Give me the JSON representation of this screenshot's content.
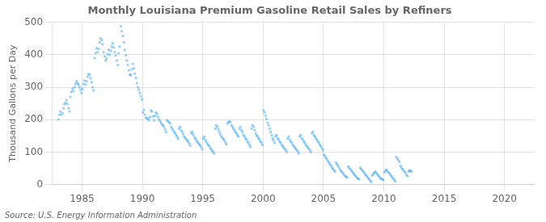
{
  "chart_data": {
    "type": "scatter",
    "title": "Monthly Louisiana Premium Gasoline Retail Sales by Refiners",
    "ylabel": "Thousand Gallons per Day",
    "annotations": [
      "Source: U.S. Energy Information Administration"
    ],
    "marker": "square",
    "grid": true,
    "xlim": [
      1982.5,
      2022.5
    ],
    "xticks": [
      1985,
      1990,
      1995,
      2000,
      2005,
      2010,
      2015,
      2020
    ],
    "ylim": [
      0,
      500
    ],
    "yticks": [
      0,
      100,
      200,
      300,
      400,
      500
    ],
    "x": [
      1983.04,
      1983.12,
      1983.21,
      1983.29,
      1983.38,
      1983.46,
      1983.54,
      1983.63,
      1983.71,
      1983.79,
      1983.88,
      1983.96,
      1984.04,
      1984.12,
      1984.21,
      1984.29,
      1984.38,
      1984.46,
      1984.54,
      1984.63,
      1984.71,
      1984.79,
      1984.88,
      1984.96,
      1985.04,
      1985.12,
      1985.21,
      1985.29,
      1985.38,
      1985.46,
      1985.54,
      1985.63,
      1985.71,
      1985.79,
      1985.88,
      1985.96,
      1986.04,
      1986.12,
      1986.21,
      1986.29,
      1986.38,
      1986.46,
      1986.54,
      1986.63,
      1986.71,
      1986.79,
      1986.88,
      1986.96,
      1987.04,
      1987.12,
      1987.21,
      1987.29,
      1987.38,
      1987.46,
      1987.54,
      1987.63,
      1987.71,
      1987.79,
      1987.88,
      1987.96,
      1988.04,
      1988.12,
      1988.21,
      1988.29,
      1988.38,
      1988.46,
      1988.54,
      1988.63,
      1988.71,
      1988.79,
      1988.88,
      1988.96,
      1989.04,
      1989.12,
      1989.21,
      1989.29,
      1989.38,
      1989.46,
      1989.54,
      1989.63,
      1989.71,
      1989.79,
      1989.88,
      1989.96,
      1990.04,
      1990.12,
      1990.21,
      1990.29,
      1990.38,
      1990.46,
      1990.54,
      1990.63,
      1990.71,
      1990.79,
      1990.88,
      1990.96,
      1991.04,
      1991.12,
      1991.21,
      1991.29,
      1991.38,
      1991.46,
      1991.54,
      1991.63,
      1991.71,
      1991.79,
      1991.88,
      1991.96,
      1992.04,
      1992.12,
      1992.21,
      1992.29,
      1992.38,
      1992.46,
      1992.54,
      1992.63,
      1992.71,
      1992.79,
      1992.88,
      1992.96,
      1993.04,
      1993.12,
      1993.21,
      1993.29,
      1993.38,
      1993.46,
      1993.54,
      1993.63,
      1993.71,
      1993.79,
      1993.88,
      1993.96,
      1994.04,
      1994.12,
      1994.21,
      1994.29,
      1994.38,
      1994.46,
      1994.54,
      1994.63,
      1994.71,
      1994.79,
      1994.88,
      1994.96,
      1995.04,
      1995.12,
      1995.21,
      1995.29,
      1995.38,
      1995.46,
      1995.54,
      1995.63,
      1995.71,
      1995.79,
      1995.88,
      1995.96,
      1996.04,
      1996.12,
      1996.21,
      1996.29,
      1996.38,
      1996.46,
      1996.54,
      1996.63,
      1996.71,
      1996.79,
      1996.88,
      1996.96,
      1997.04,
      1997.12,
      1997.21,
      1997.29,
      1997.38,
      1997.46,
      1997.54,
      1997.63,
      1997.71,
      1997.79,
      1997.88,
      1997.96,
      1998.04,
      1998.12,
      1998.21,
      1998.29,
      1998.38,
      1998.46,
      1998.54,
      1998.63,
      1998.71,
      1998.79,
      1998.88,
      1998.96,
      1999.04,
      1999.12,
      1999.21,
      1999.29,
      1999.38,
      1999.46,
      1999.54,
      1999.63,
      1999.71,
      1999.79,
      1999.88,
      1999.96,
      2000.04,
      2000.12,
      2000.21,
      2000.29,
      2000.38,
      2000.46,
      2000.54,
      2000.63,
      2000.71,
      2000.79,
      2000.88,
      2000.96,
      2001.04,
      2001.12,
      2001.21,
      2001.29,
      2001.38,
      2001.46,
      2001.54,
      2001.63,
      2001.71,
      2001.79,
      2001.88,
      2001.96,
      2002.04,
      2002.12,
      2002.21,
      2002.29,
      2002.38,
      2002.46,
      2002.54,
      2002.63,
      2002.71,
      2002.79,
      2002.88,
      2002.96,
      2003.04,
      2003.12,
      2003.21,
      2003.29,
      2003.38,
      2003.46,
      2003.54,
      2003.63,
      2003.71,
      2003.79,
      2003.88,
      2003.96,
      2004.04,
      2004.12,
      2004.21,
      2004.29,
      2004.38,
      2004.46,
      2004.54,
      2004.63,
      2004.71,
      2004.79,
      2004.88,
      2004.96,
      2005.04,
      2005.12,
      2005.21,
      2005.29,
      2005.38,
      2005.46,
      2005.54,
      2005.63,
      2005.71,
      2005.79,
      2005.88,
      2005.96,
      2006.04,
      2006.12,
      2006.21,
      2006.29,
      2006.38,
      2006.46,
      2006.54,
      2006.63,
      2006.71,
      2006.79,
      2006.88,
      2006.96,
      2007.04,
      2007.12,
      2007.21,
      2007.29,
      2007.38,
      2007.46,
      2007.54,
      2007.63,
      2007.71,
      2007.79,
      2007.88,
      2007.96,
      2008.04,
      2008.12,
      2008.21,
      2008.29,
      2008.38,
      2008.46,
      2008.54,
      2008.63,
      2008.71,
      2008.79,
      2008.88,
      2008.96,
      2009.04,
      2009.12,
      2009.21,
      2009.29,
      2009.38,
      2009.46,
      2009.54,
      2009.63,
      2009.71,
      2009.79,
      2009.88,
      2009.96,
      2010.04,
      2010.12,
      2010.21,
      2010.29,
      2010.38,
      2010.46,
      2010.54,
      2010.63,
      2010.71,
      2010.79,
      2010.88,
      2010.96,
      2011.04,
      2011.12,
      2011.21,
      2011.29,
      2011.38,
      2011.46,
      2011.54,
      2011.63,
      2011.71,
      2011.79,
      2011.88,
      2011.96,
      2012.04,
      2012.12,
      2012.21,
      2012.29
    ],
    "values": [
      200,
      215,
      225,
      215,
      220,
      235,
      248,
      252,
      260,
      248,
      235,
      225,
      270,
      285,
      295,
      288,
      300,
      310,
      318,
      312,
      308,
      300,
      292,
      282,
      295,
      310,
      320,
      308,
      318,
      332,
      340,
      338,
      328,
      315,
      300,
      290,
      390,
      405,
      420,
      408,
      418,
      438,
      450,
      445,
      432,
      408,
      395,
      382,
      388,
      402,
      415,
      400,
      412,
      425,
      435,
      422,
      408,
      398,
      382,
      368,
      405,
      425,
      488,
      472,
      458,
      438,
      415,
      398,
      382,
      368,
      352,
      338,
      338,
      355,
      372,
      358,
      342,
      328,
      312,
      300,
      292,
      282,
      272,
      262,
      222,
      230,
      215,
      205,
      205,
      202,
      198,
      208,
      228,
      225,
      210,
      198,
      212,
      222,
      218,
      208,
      200,
      196,
      190,
      185,
      182,
      178,
      170,
      162,
      198,
      195,
      192,
      188,
      178,
      172,
      168,
      162,
      158,
      152,
      148,
      142,
      172,
      178,
      168,
      162,
      155,
      148,
      144,
      140,
      136,
      132,
      126,
      120,
      158,
      162,
      155,
      148,
      142,
      138,
      132,
      128,
      124,
      120,
      115,
      108,
      142,
      148,
      138,
      132,
      126,
      122,
      118,
      112,
      108,
      104,
      100,
      95,
      172,
      182,
      178,
      170,
      162,
      155,
      148,
      144,
      140,
      136,
      130,
      124,
      188,
      192,
      196,
      192,
      182,
      178,
      172,
      168,
      162,
      158,
      152,
      148,
      172,
      178,
      168,
      162,
      152,
      148,
      142,
      138,
      132,
      128,
      122,
      116,
      172,
      182,
      178,
      168,
      158,
      152,
      148,
      142,
      138,
      132,
      128,
      122,
      228,
      222,
      212,
      202,
      190,
      182,
      172,
      162,
      152,
      142,
      136,
      128,
      148,
      152,
      142,
      138,
      132,
      128,
      122,
      118,
      114,
      110,
      106,
      100,
      142,
      148,
      138,
      132,
      128,
      122,
      118,
      114,
      110,
      106,
      102,
      96,
      148,
      152,
      142,
      138,
      132,
      128,
      122,
      118,
      114,
      110,
      106,
      100,
      158,
      162,
      152,
      148,
      142,
      138,
      132,
      128,
      122,
      118,
      112,
      106,
      92,
      88,
      82,
      78,
      72,
      68,
      62,
      58,
      52,
      48,
      44,
      40,
      68,
      62,
      58,
      52,
      46,
      42,
      38,
      34,
      30,
      26,
      24,
      22,
      56,
      52,
      48,
      44,
      40,
      36,
      32,
      28,
      24,
      20,
      18,
      16,
      52,
      48,
      44,
      40,
      36,
      32,
      28,
      24,
      20,
      16,
      12,
      8,
      28,
      32,
      36,
      40,
      36,
      32,
      28,
      24,
      20,
      18,
      16,
      14,
      38,
      42,
      46,
      42,
      38,
      34,
      30,
      26,
      22,
      18,
      14,
      10,
      85,
      80,
      75,
      70,
      58,
      52,
      48,
      44,
      40,
      36,
      30,
      26,
      40,
      44,
      42,
      40
    ]
  }
}
